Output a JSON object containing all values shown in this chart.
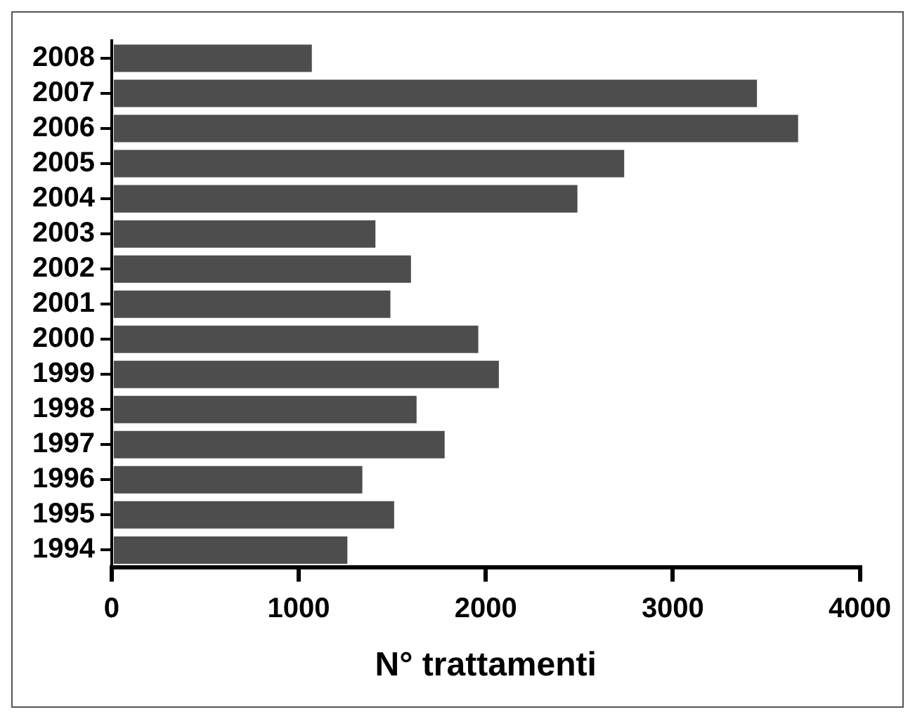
{
  "chart_data": {
    "type": "bar",
    "orientation": "horizontal",
    "xlabel": "N° trattamenti",
    "categories": [
      "2008",
      "2007",
      "2006",
      "2005",
      "2004",
      "2003",
      "2002",
      "2001",
      "2000",
      "1999",
      "1998",
      "1997",
      "1996",
      "1995",
      "1994"
    ],
    "values": [
      1070,
      3450,
      3670,
      2740,
      2490,
      1410,
      1600,
      1490,
      1960,
      2070,
      1630,
      1780,
      1340,
      1510,
      1260
    ],
    "color": "#4d4d4d",
    "xlim": [
      0,
      4000
    ],
    "xticks": [
      0,
      1000,
      2000,
      3000,
      4000
    ],
    "grid": false,
    "legend": false
  }
}
